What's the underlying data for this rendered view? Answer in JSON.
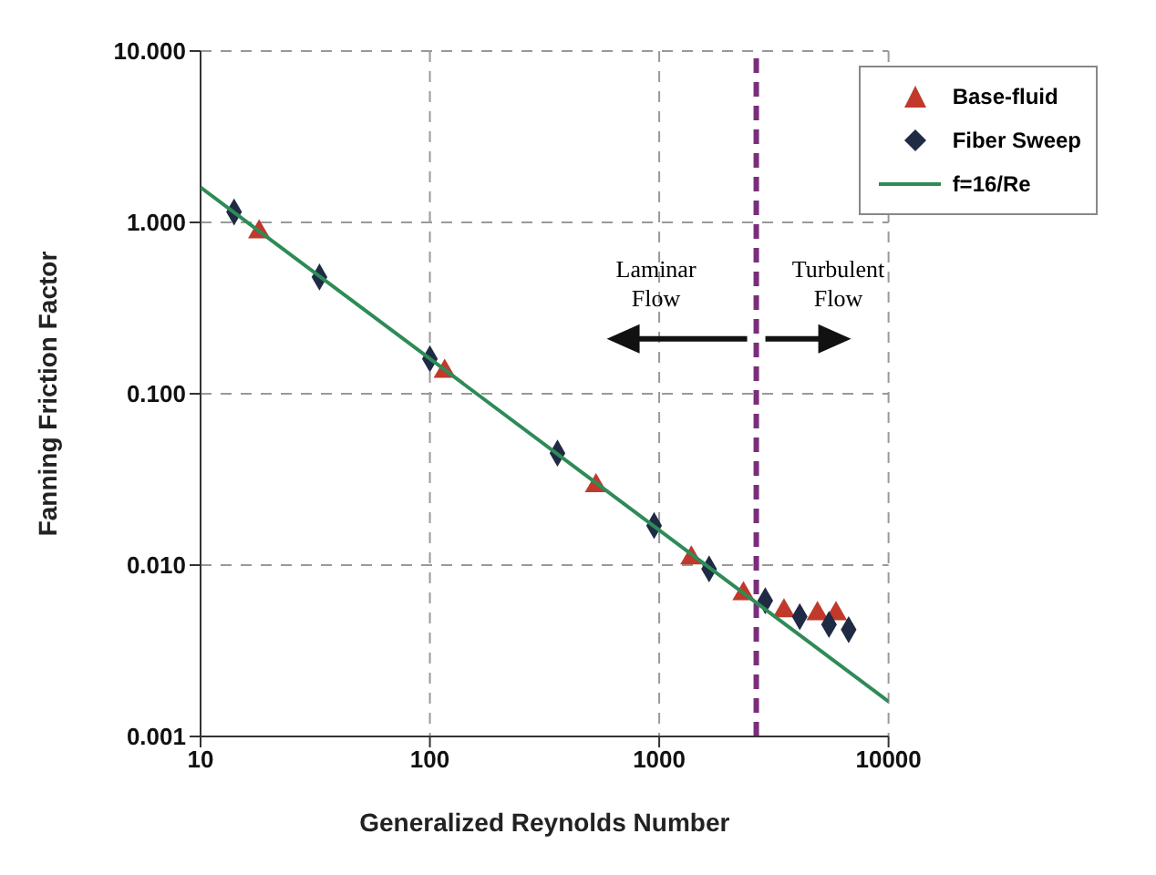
{
  "chart_data": {
    "type": "scatter",
    "xlabel": "Generalized Reynolds Number",
    "ylabel": "Fanning Friction Factor",
    "log": "xy",
    "grid": true,
    "legend": "top right",
    "xlim": [
      10,
      10000
    ],
    "xticks": [
      10,
      100,
      1000,
      10000
    ],
    "ylim": [
      0.001,
      10
    ],
    "yticks": [
      {
        "value": 0.001,
        "label": "0.001"
      },
      {
        "value": 0.01,
        "label": "0.010"
      },
      {
        "value": 0.1,
        "label": "0.100"
      },
      {
        "value": 1,
        "label": "1.000"
      },
      {
        "value": 10,
        "label": "10.000"
      }
    ],
    "series": [
      {
        "name": "Base-fluid",
        "marker": "triangle",
        "color": "#c0392b",
        "x": [
          18,
          116,
          530,
          1380,
          2330,
          3500,
          4900,
          5900
        ],
        "values": [
          0.88,
          0.135,
          0.029,
          0.011,
          0.0068,
          0.0054,
          0.0052,
          0.0052
        ]
      },
      {
        "name": "Fiber Sweep",
        "marker": "diamond",
        "color": "#1f2a44",
        "x": [
          14,
          33,
          100,
          360,
          950,
          1650,
          2900,
          4100,
          5500,
          6700
        ],
        "values": [
          1.15,
          0.48,
          0.16,
          0.045,
          0.017,
          0.0095,
          0.0062,
          0.005,
          0.0045,
          0.0042
        ]
      },
      {
        "name": "f=16/Re",
        "type": "line",
        "color": "#2e8b57",
        "x": [
          10,
          10000
        ],
        "values": [
          1.6,
          0.0016
        ]
      }
    ],
    "ref_lines": [
      {
        "axis": "x",
        "value": 2650,
        "color": "#7b2d7b",
        "line_style": "dashed"
      }
    ],
    "annotations": [
      "Laminar Flow",
      "Turbulent Flow"
    ]
  }
}
